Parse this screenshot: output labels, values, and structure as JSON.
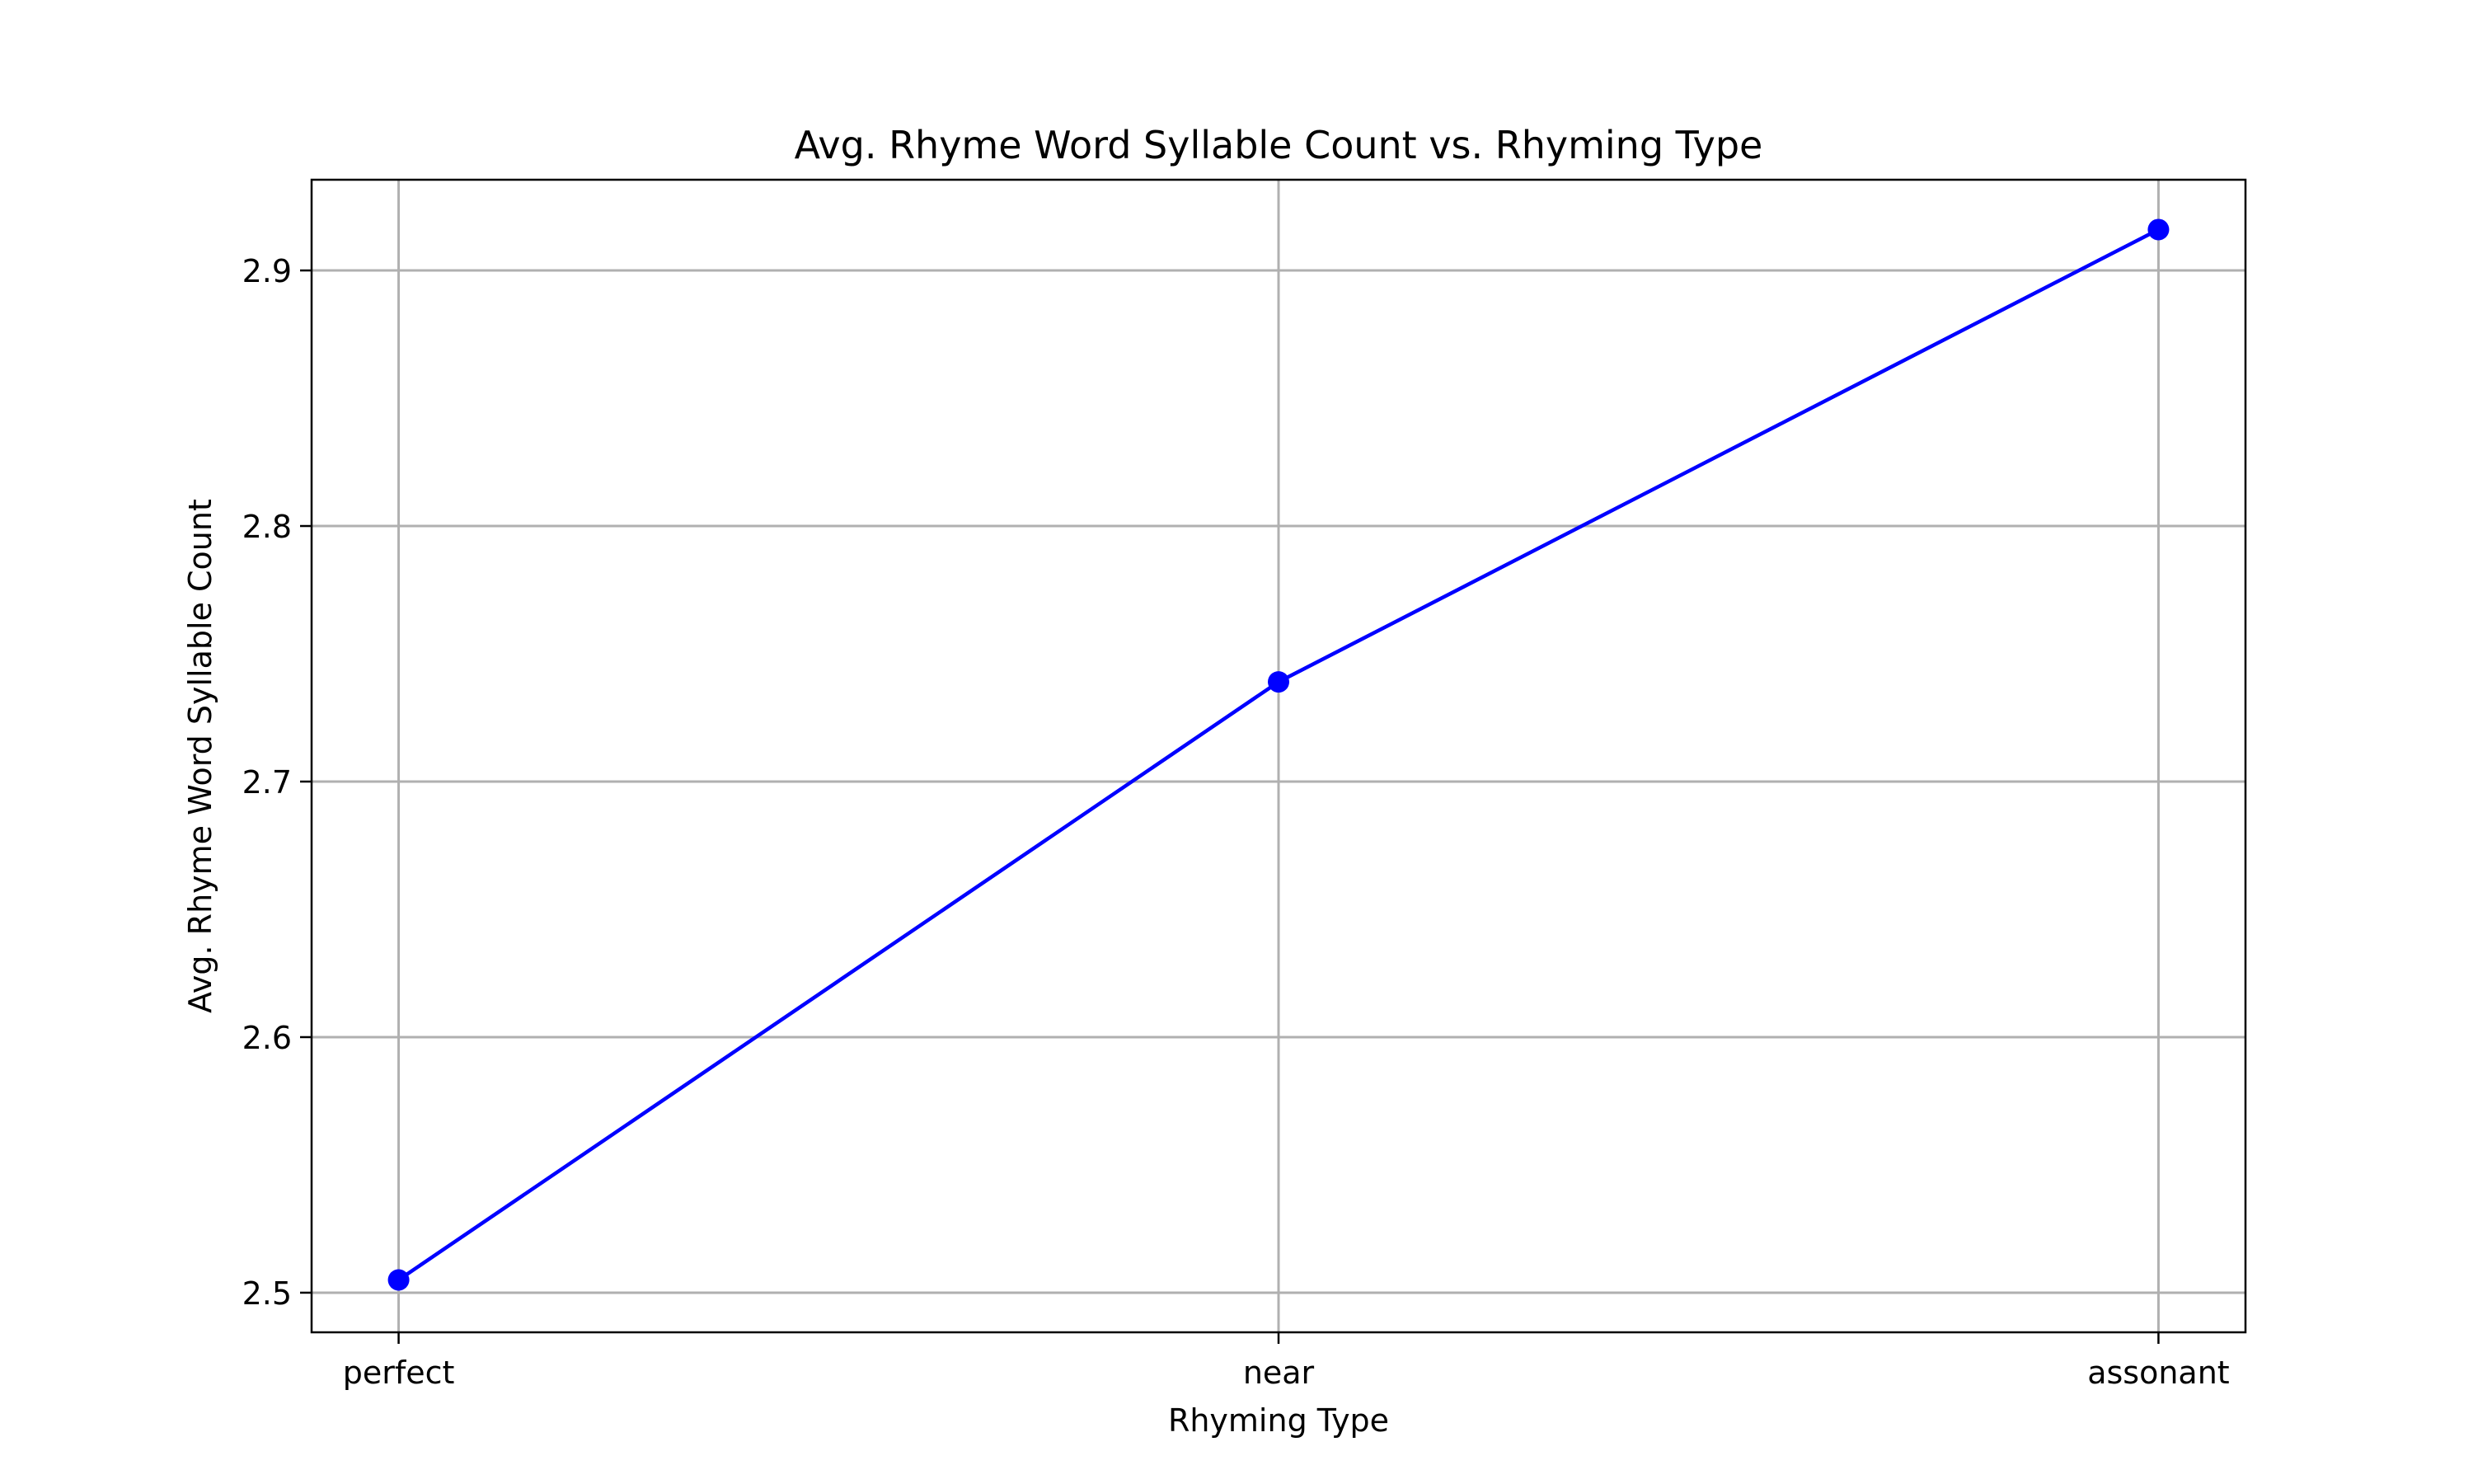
{
  "chart_data": {
    "type": "line",
    "title": "Avg. Rhyme Word Syllable Count vs. Rhyming Type",
    "xlabel": "Rhyming Type",
    "ylabel": "Avg. Rhyme Word Syllable Count",
    "categories": [
      "perfect",
      "near",
      "assonant"
    ],
    "series": [
      {
        "values": [
          2.505,
          2.739,
          2.916
        ],
        "color": "#0000ff",
        "marker": "circle"
      }
    ],
    "y_ticks": [
      2.5,
      2.6,
      2.7,
      2.8,
      2.9
    ],
    "y_tick_labels": [
      "2.5",
      "2.6",
      "2.7",
      "2.8",
      "2.9"
    ],
    "ylim": [
      2.4845,
      2.9355
    ],
    "grid": true,
    "legend": "none"
  }
}
